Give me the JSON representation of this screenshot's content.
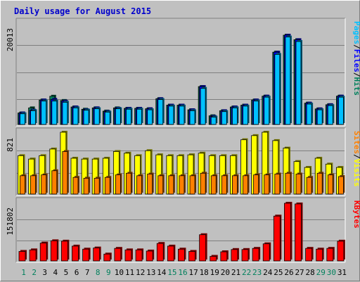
{
  "title": "Daily usage for August 2015",
  "colors": {
    "background": "#c0c0c0",
    "panel": "#c0c0c0",
    "title": "#0000cc",
    "hits": "#00805c",
    "files": "#0000ff",
    "pages": "#00c0ff",
    "visits": "#ffff00",
    "sites": "#ff8000",
    "kbytes": "#ff0000",
    "weekday_label": "#000000",
    "weekend_label": "#00805c"
  },
  "chart_data": [
    {
      "type": "bar",
      "name": "hits-files-pages",
      "ymax_label": "20013",
      "ymax": 20013,
      "legend": [
        {
          "label": "Pages",
          "color": "#00c0ff"
        },
        {
          "label": "/",
          "color": "#000000"
        },
        {
          "label": "Files",
          "color": "#0000ff"
        },
        {
          "label": "/",
          "color": "#000000"
        },
        {
          "label": "Hits",
          "color": "#00805c"
        }
      ],
      "categories": [
        "1",
        "2",
        "3",
        "4",
        "5",
        "6",
        "7",
        "8",
        "9",
        "10",
        "11",
        "12",
        "13",
        "14",
        "15",
        "16",
        "17",
        "18",
        "19",
        "20",
        "21",
        "22",
        "23",
        "24",
        "25",
        "26",
        "27",
        "28",
        "29",
        "30",
        "31"
      ],
      "series": [
        {
          "name": "Hits",
          "values": [
            2580,
            3720,
            5480,
            6330,
            5380,
            3920,
            3420,
            3720,
            3000,
            3720,
            3620,
            3620,
            3520,
            5780,
            4330,
            4330,
            3290,
            8490,
            1950,
            3080,
            3920,
            4330,
            5480,
            6350,
            16200,
            20013,
            19000,
            4780,
            3490,
            4430,
            6350
          ]
        },
        {
          "name": "Files",
          "values": [
            2580,
            3200,
            5480,
            5620,
            5220,
            3920,
            3290,
            3720,
            2900,
            3620,
            3620,
            3620,
            3520,
            5780,
            4330,
            4330,
            3290,
            8490,
            1800,
            3080,
            3920,
            4330,
            5480,
            6350,
            16200,
            20013,
            19000,
            4780,
            3490,
            4430,
            6350
          ]
        },
        {
          "name": "Pages",
          "values": [
            2400,
            3080,
            5250,
            5250,
            4980,
            3720,
            3200,
            3520,
            2770,
            3520,
            3420,
            3420,
            3290,
            5580,
            4120,
            4120,
            3080,
            8080,
            1650,
            2880,
            3720,
            4120,
            5250,
            6120,
            15700,
            19600,
            18600,
            4570,
            3290,
            4230,
            6120
          ]
        }
      ]
    },
    {
      "type": "bar",
      "name": "visits-sites",
      "ymax_label": "821",
      "ymax": 821,
      "legend": [
        {
          "label": "Sites",
          "color": "#ff8000"
        },
        {
          "label": "/",
          "color": "#000000"
        },
        {
          "label": "Visits",
          "color": "#ffff00"
        }
      ],
      "categories": [
        "1",
        "2",
        "3",
        "4",
        "5",
        "6",
        "7",
        "8",
        "9",
        "10",
        "11",
        "12",
        "13",
        "14",
        "15",
        "16",
        "17",
        "18",
        "19",
        "20",
        "21",
        "22",
        "23",
        "24",
        "25",
        "26",
        "27",
        "28",
        "29",
        "30",
        "31"
      ],
      "series": [
        {
          "name": "Visits",
          "values": [
            510,
            465,
            510,
            598,
            821,
            476,
            465,
            465,
            476,
            565,
            543,
            510,
            576,
            521,
            510,
            510,
            521,
            543,
            510,
            510,
            510,
            721,
            776,
            821,
            710,
            610,
            432,
            354,
            476,
            398,
            354
          ]
        },
        {
          "name": "Sites",
          "values": [
            244,
            244,
            255,
            310,
            565,
            222,
            211,
            211,
            222,
            255,
            277,
            244,
            266,
            244,
            244,
            244,
            244,
            277,
            244,
            244,
            244,
            244,
            255,
            255,
            266,
            277,
            266,
            222,
            277,
            255,
            233
          ]
        }
      ]
    },
    {
      "type": "bar",
      "name": "kbytes",
      "ymax_label": "151802",
      "ymax": 151802,
      "legend": [
        {
          "label": "KBytes",
          "color": "#ff0000"
        }
      ],
      "categories": [
        "1",
        "2",
        "3",
        "4",
        "5",
        "6",
        "7",
        "8",
        "9",
        "10",
        "11",
        "12",
        "13",
        "14",
        "15",
        "16",
        "17",
        "18",
        "19",
        "20",
        "21",
        "22",
        "23",
        "24",
        "25",
        "26",
        "27",
        "28",
        "29",
        "30",
        "31"
      ],
      "series": [
        {
          "name": "KBytes",
          "values": [
            25000,
            29000,
            47000,
            53000,
            52000,
            39000,
            31000,
            34000,
            18000,
            33000,
            29000,
            29000,
            26000,
            46000,
            39000,
            31000,
            25000,
            69000,
            12000,
            24000,
            30000,
            30000,
            33000,
            45000,
            118000,
            151802,
            150000,
            33000,
            31000,
            33000,
            52000
          ]
        }
      ]
    }
  ],
  "x_labels": [
    {
      "text": "1",
      "weekend": true
    },
    {
      "text": "2",
      "weekend": true
    },
    {
      "text": "3",
      "weekend": false
    },
    {
      "text": "4",
      "weekend": false
    },
    {
      "text": "5",
      "weekend": false
    },
    {
      "text": "6",
      "weekend": false
    },
    {
      "text": "7",
      "weekend": false
    },
    {
      "text": "8",
      "weekend": true
    },
    {
      "text": "9",
      "weekend": true
    },
    {
      "text": "10",
      "weekend": false
    },
    {
      "text": "11",
      "weekend": false
    },
    {
      "text": "12",
      "weekend": false
    },
    {
      "text": "13",
      "weekend": false
    },
    {
      "text": "14",
      "weekend": false
    },
    {
      "text": "15",
      "weekend": true
    },
    {
      "text": "16",
      "weekend": true
    },
    {
      "text": "17",
      "weekend": false
    },
    {
      "text": "18",
      "weekend": false
    },
    {
      "text": "19",
      "weekend": false
    },
    {
      "text": "20",
      "weekend": false
    },
    {
      "text": "21",
      "weekend": false
    },
    {
      "text": "22",
      "weekend": true
    },
    {
      "text": "23",
      "weekend": true
    },
    {
      "text": "24",
      "weekend": false
    },
    {
      "text": "25",
      "weekend": false
    },
    {
      "text": "26",
      "weekend": false
    },
    {
      "text": "27",
      "weekend": false
    },
    {
      "text": "28",
      "weekend": false
    },
    {
      "text": "29",
      "weekend": true
    },
    {
      "text": "30",
      "weekend": true
    },
    {
      "text": "31",
      "weekend": false
    }
  ]
}
